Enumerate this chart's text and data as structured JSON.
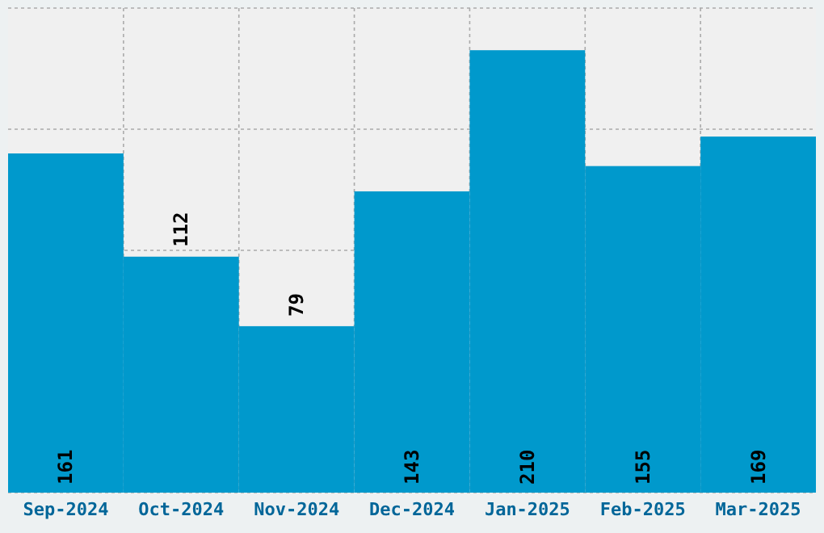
{
  "chart_data": {
    "type": "bar",
    "categories": [
      "Sep-2024",
      "Oct-2024",
      "Nov-2024",
      "Dec-2024",
      "Jan-2025",
      "Feb-2025",
      "Mar-2025"
    ],
    "values": [
      161,
      112,
      79,
      143,
      210,
      155,
      169
    ],
    "color": "#0099cc",
    "ylim": [
      0,
      230
    ],
    "grid": true,
    "data_labels": true,
    "tick_labels": "x"
  }
}
